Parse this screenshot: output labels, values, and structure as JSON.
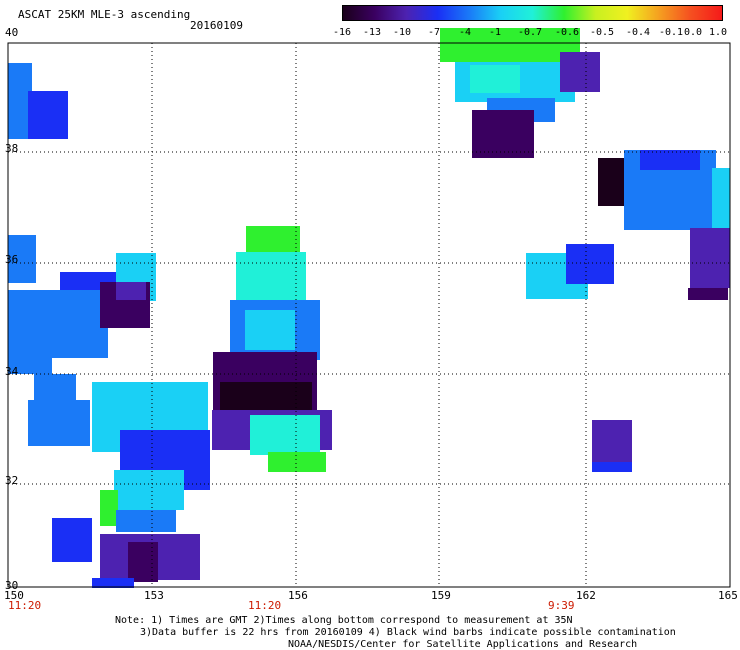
{
  "header": {
    "title": "ASCAT 25KM MLE-3 ascending",
    "date": "20160109"
  },
  "colors": {
    "colorbar_stops": [
      "#1a001a",
      "#3a0060",
      "#4d22b0",
      "#1a2ff5",
      "#1a7af7",
      "#1ad0f5",
      "#20f0d8",
      "#2ff02f",
      "#c8f020",
      "#f0f020",
      "#f5a020",
      "#f55020",
      "#f51a1a"
    ]
  },
  "colorbar": {
    "labels": [
      "-16",
      "-13",
      "-10",
      "-7",
      "-4",
      "-1",
      "-0.7",
      "-0.6",
      "-0.5",
      "-0.4",
      "-0.1",
      "0.0",
      "1.0"
    ]
  },
  "map": {
    "lat_labels": [
      "40",
      "38",
      "36",
      "34",
      "32",
      "30"
    ],
    "lon_labels": [
      "150",
      "153",
      "156",
      "159",
      "162",
      "165"
    ],
    "time_labels": [
      "11:20",
      "11:20",
      "9:39"
    ]
  },
  "notes": {
    "line1": "Note: 1) Times are GMT 2)Times along bottom correspond to measurement at 35N",
    "line2": "3)Data buffer is 22 hrs from 20160109 4) Black wind barbs indicate possible contamination",
    "line3": "NOAA/NESDIS/Center for Satellite Applications and Research"
  }
}
